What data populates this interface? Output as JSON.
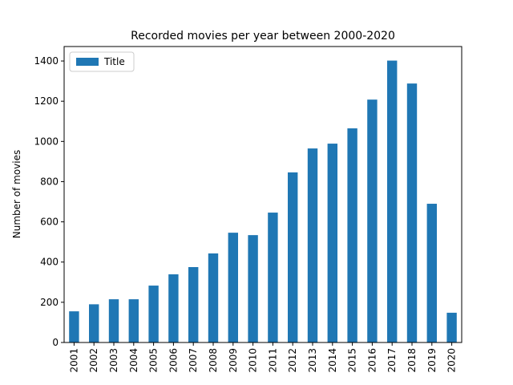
{
  "chart_data": {
    "type": "bar",
    "title": "Recorded movies per year between 2000-2020",
    "y_label": "Number of movies",
    "categories": [
      "2001",
      "2002",
      "2003",
      "2004",
      "2005",
      "2006",
      "2007",
      "2008",
      "2009",
      "2010",
      "2011",
      "2012",
      "2013",
      "2014",
      "2015",
      "2016",
      "2017",
      "2018",
      "2019",
      "2020"
    ],
    "series": [
      {
        "name": "Title",
        "color": "#1f77b4",
        "values": [
          155,
          190,
          215,
          215,
          283,
          339,
          375,
          443,
          546,
          534,
          646,
          846,
          965,
          989,
          1065,
          1208,
          1402,
          1288,
          690,
          148
        ]
      }
    ],
    "ylim": [
      0,
      1472
    ],
    "yticks": [
      0,
      200,
      400,
      600,
      800,
      1000,
      1200,
      1400
    ],
    "legend": "upper left"
  }
}
